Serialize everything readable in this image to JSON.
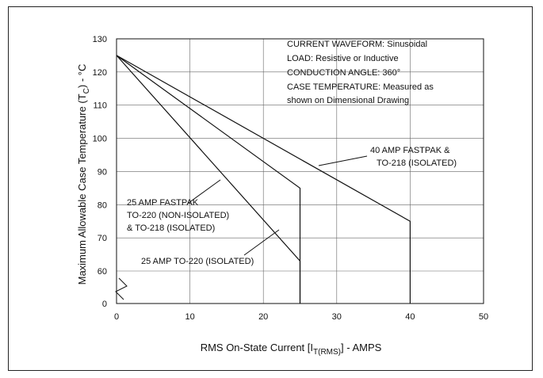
{
  "chart_data": {
    "type": "line",
    "title": "",
    "xlabel_parts": [
      "RMS On-State Current [I",
      "T(RMS)",
      "] - AMPS"
    ],
    "ylabel_parts": [
      "Maximum Allowable Case Temperature (T",
      "C",
      ") - °C"
    ],
    "xlim": [
      0,
      50
    ],
    "ylim_display": [
      0,
      130
    ],
    "axis_break": "0 to 60",
    "x_ticks": [
      "0",
      "10",
      "20",
      "30",
      "40",
      "50"
    ],
    "y_ticks": [
      "130",
      "120",
      "110",
      "100",
      "90",
      "80",
      "70",
      "60",
      "0"
    ],
    "grid": true,
    "notes": [
      "CURRENT WAVEFORM: Sinusoidal",
      "LOAD: Resistive or Inductive",
      "CONDUCTION ANGLE: 360°",
      "CASE TEMPERATURE: Measured as",
      "shown on Dimensional Drawing"
    ],
    "series": [
      {
        "label_lines": [
          "40 AMP FASTPAK &",
          "TO-218 (ISOLATED)"
        ],
        "x": [
          0,
          40,
          40
        ],
        "y": [
          125,
          75,
          0
        ],
        "color": "#111111"
      },
      {
        "label_lines": [
          "25 AMP FASTPAK",
          "TO-220 (NON-ISOLATED)",
          "& TO-218 (ISOLATED)"
        ],
        "x": [
          0,
          25,
          25
        ],
        "y": [
          125,
          85,
          0
        ],
        "color": "#111111"
      },
      {
        "label_lines": [
          "25 AMP TO-220 (ISOLATED)"
        ],
        "x": [
          0,
          25,
          25
        ],
        "y": [
          125,
          63,
          0
        ],
        "color": "#111111"
      }
    ]
  }
}
